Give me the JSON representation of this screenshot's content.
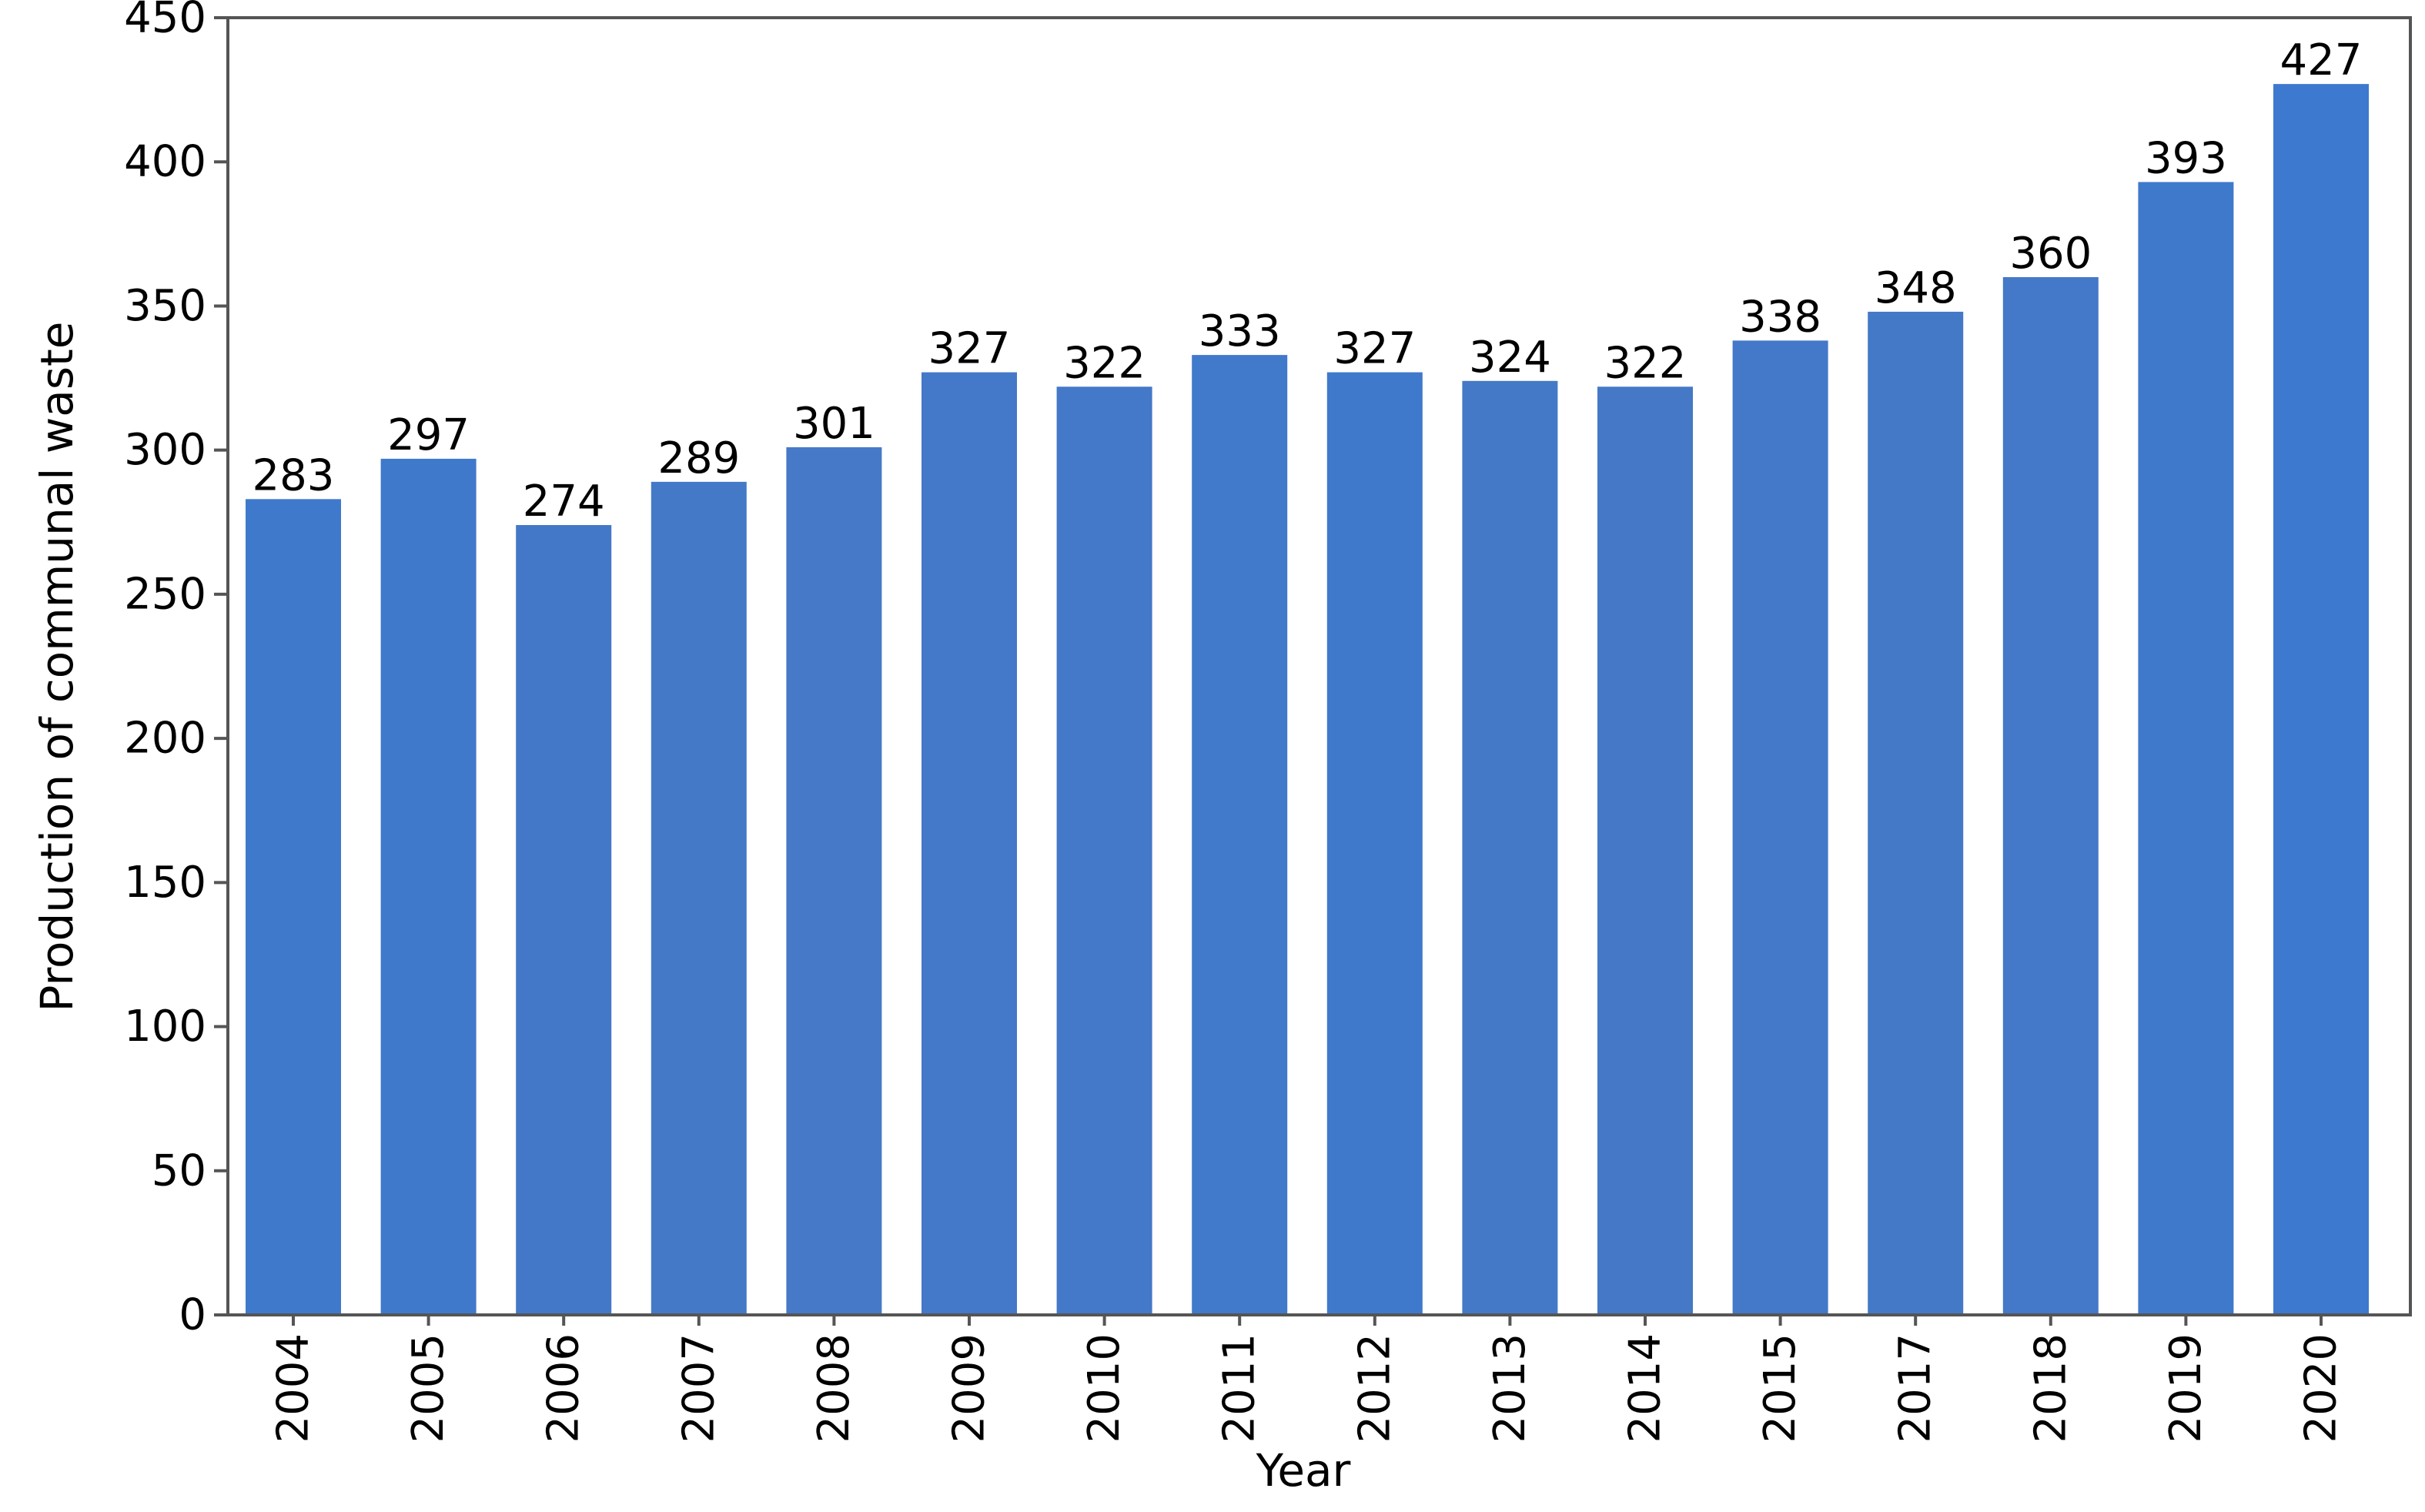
{
  "chart_data": {
    "type": "bar",
    "title": "",
    "xlabel": "Year",
    "ylabel": "Production of communal waste",
    "categories": [
      "2004",
      "2005",
      "2006",
      "2007",
      "2008",
      "2009",
      "2010",
      "2011",
      "2012",
      "2013",
      "2014",
      "2015",
      "2017",
      "2018",
      "2019",
      "2020"
    ],
    "values": [
      283,
      297,
      274,
      289,
      301,
      327,
      322,
      333,
      327,
      324,
      322,
      338,
      348,
      360,
      393,
      427
    ],
    "ylim": [
      0,
      450
    ],
    "yticks": [
      0,
      50,
      100,
      150,
      200,
      250,
      300,
      350,
      400,
      450
    ],
    "grid": false,
    "legend": "none",
    "bar_colors": [
      "#3f79cc",
      "#3f79cc",
      "#4378c8",
      "#4479c7",
      "#4679c7",
      "#4478c8",
      "#4478c8",
      "#4179cb",
      "#3f79cc",
      "#4479c7",
      "#4578c6",
      "#4478c8",
      "#4479c7",
      "#4478c8",
      "#3f79cc",
      "#3c79cf"
    ],
    "frame_color": "#555555"
  }
}
